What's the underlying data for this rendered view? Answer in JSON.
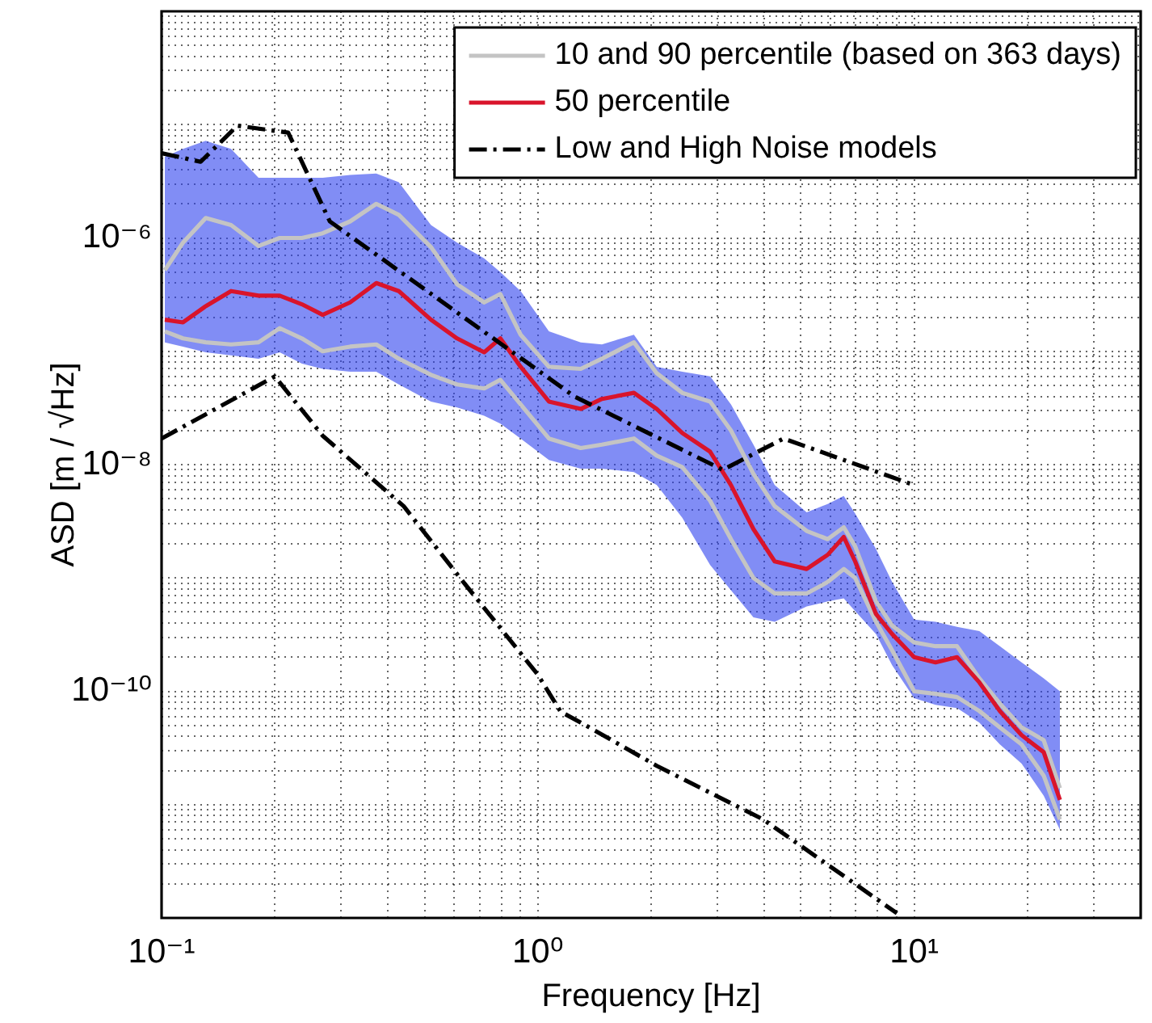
{
  "chart_data": {
    "type": "line",
    "xlabel": "Frequency [Hz]",
    "ylabel": "ASD [m / √Hz]",
    "log": "xy",
    "grid": true,
    "legend": "top right",
    "marker": "none",
    "xlim": [
      0.1,
      40
    ],
    "xticks": [
      {
        "value": 0.1,
        "label": "10⁻¹"
      },
      {
        "value": 0.2,
        "label": null
      },
      {
        "value": 0.3,
        "label": null
      },
      {
        "value": 0.4,
        "label": null
      },
      {
        "value": 0.5,
        "label": null
      },
      {
        "value": 0.6,
        "label": null
      },
      {
        "value": 0.7,
        "label": null
      },
      {
        "value": 0.8,
        "label": null
      },
      {
        "value": 0.9,
        "label": null
      },
      {
        "value": 1,
        "label": "10⁰"
      },
      {
        "value": 2,
        "label": null
      },
      {
        "value": 3,
        "label": null
      },
      {
        "value": 4,
        "label": null
      },
      {
        "value": 5,
        "label": null
      },
      {
        "value": 6,
        "label": null
      },
      {
        "value": 7,
        "label": null
      },
      {
        "value": 8,
        "label": null
      },
      {
        "value": 9,
        "label": null
      },
      {
        "value": 10,
        "label": "10¹"
      },
      {
        "value": 20,
        "label": null
      },
      {
        "value": 30,
        "label": null
      }
    ],
    "ylim": [
      1e-12,
      0.0001
    ],
    "yticks": [
      {
        "value": 1e-12,
        "label": null
      },
      {
        "value": 2e-12,
        "label": null
      },
      {
        "value": 3e-12,
        "label": null
      },
      {
        "value": 4e-12,
        "label": null
      },
      {
        "value": 5e-12,
        "label": null
      },
      {
        "value": 6e-12,
        "label": null
      },
      {
        "value": 7e-12,
        "label": null
      },
      {
        "value": 8e-12,
        "label": null
      },
      {
        "value": 9e-12,
        "label": null
      },
      {
        "value": 1e-11,
        "label": null
      },
      {
        "value": 2e-11,
        "label": null
      },
      {
        "value": 3e-11,
        "label": null
      },
      {
        "value": 4e-11,
        "label": null
      },
      {
        "value": 5e-11,
        "label": null
      },
      {
        "value": 6e-11,
        "label": null
      },
      {
        "value": 7e-11,
        "label": null
      },
      {
        "value": 8e-11,
        "label": null
      },
      {
        "value": 9e-11,
        "label": null
      },
      {
        "value": 1e-10,
        "label": "10⁻¹⁰"
      },
      {
        "value": 2e-10,
        "label": null
      },
      {
        "value": 3e-10,
        "label": null
      },
      {
        "value": 4e-10,
        "label": null
      },
      {
        "value": 5e-10,
        "label": null
      },
      {
        "value": 6e-10,
        "label": null
      },
      {
        "value": 7e-10,
        "label": null
      },
      {
        "value": 8e-10,
        "label": null
      },
      {
        "value": 9e-10,
        "label": null
      },
      {
        "value": 1e-09,
        "label": null
      },
      {
        "value": 2e-09,
        "label": null
      },
      {
        "value": 3e-09,
        "label": null
      },
      {
        "value": 4e-09,
        "label": null
      },
      {
        "value": 5e-09,
        "label": null
      },
      {
        "value": 6e-09,
        "label": null
      },
      {
        "value": 7e-09,
        "label": null
      },
      {
        "value": 8e-09,
        "label": null
      },
      {
        "value": 9e-09,
        "label": null
      },
      {
        "value": 1e-08,
        "label": "10⁻⁸"
      },
      {
        "value": 2e-08,
        "label": null
      },
      {
        "value": 3e-08,
        "label": null
      },
      {
        "value": 4e-08,
        "label": null
      },
      {
        "value": 5e-08,
        "label": null
      },
      {
        "value": 6e-08,
        "label": null
      },
      {
        "value": 7e-08,
        "label": null
      },
      {
        "value": 8e-08,
        "label": null
      },
      {
        "value": 9e-08,
        "label": null
      },
      {
        "value": 1e-07,
        "label": null
      },
      {
        "value": 2e-07,
        "label": null
      },
      {
        "value": 3e-07,
        "label": null
      },
      {
        "value": 4e-07,
        "label": null
      },
      {
        "value": 5e-07,
        "label": null
      },
      {
        "value": 6e-07,
        "label": null
      },
      {
        "value": 7e-07,
        "label": null
      },
      {
        "value": 8e-07,
        "label": null
      },
      {
        "value": 9e-07,
        "label": null
      },
      {
        "value": 1e-06,
        "label": "10⁻⁶"
      },
      {
        "value": 2e-06,
        "label": null
      },
      {
        "value": 3e-06,
        "label": null
      },
      {
        "value": 4e-06,
        "label": null
      },
      {
        "value": 5e-06,
        "label": null
      },
      {
        "value": 6e-06,
        "label": null
      },
      {
        "value": 7e-06,
        "label": null
      },
      {
        "value": 8e-06,
        "label": null
      },
      {
        "value": 9e-06,
        "label": null
      },
      {
        "value": 1e-05,
        "label": null
      },
      {
        "value": 2e-05,
        "label": null
      },
      {
        "value": 3e-05,
        "label": null
      },
      {
        "value": 4e-05,
        "label": null
      },
      {
        "value": 5e-05,
        "label": null
      },
      {
        "value": 6e-05,
        "label": null
      },
      {
        "value": 7e-05,
        "label": null
      },
      {
        "value": 8e-05,
        "label": null
      },
      {
        "value": 9e-05,
        "label": null
      },
      {
        "value": 0.0001,
        "label": null
      }
    ],
    "x": [
      0.102,
      0.114,
      0.131,
      0.153,
      0.181,
      0.206,
      0.236,
      0.268,
      0.317,
      0.372,
      0.427,
      0.52,
      0.61,
      0.72,
      0.795,
      0.9,
      1.07,
      1.3,
      1.48,
      1.8,
      2.07,
      2.42,
      2.87,
      3.26,
      3.74,
      4.26,
      5.18,
      5.89,
      6.5,
      6.97,
      7.92,
      8.74,
      10.0,
      11.4,
      13.0,
      14.9,
      16.9,
      19.3,
      22.1,
      24.4
    ],
    "series": [
      {
        "name": "10 and 90 percentile (based on 363 days)",
        "color": "#c4c4c4",
        "values": [
          5.2e-07,
          9.1e-07,
          1.5e-06,
          1.3e-06,
          8.5e-07,
          1e-06,
          1e-06,
          1.1e-06,
          1.4e-06,
          2e-06,
          1.6e-06,
          8.3e-07,
          3.9e-07,
          2.7e-07,
          3.2e-07,
          1.4e-07,
          7.3e-08,
          7e-08,
          8.6e-08,
          1.2e-07,
          6.4e-08,
          4.3e-08,
          3.6e-08,
          2e-08,
          8.3e-09,
          4.3e-09,
          2.6e-09,
          2.2e-09,
          2.8e-09,
          1.9e-09,
          6.2e-10,
          3.8e-10,
          2.7e-10,
          2.5e-10,
          2.5e-10,
          1.3e-10,
          7.8e-11,
          4.8e-11,
          3.7e-11,
          1.4e-11
        ]
      },
      {
        "color": "#c4c4c4",
        "values": [
          1.5e-07,
          1.3e-07,
          1.2e-07,
          1.15e-07,
          1.2e-07,
          1.6e-07,
          1.3e-07,
          1e-07,
          1.1e-07,
          1.15e-07,
          8.6e-08,
          6.2e-08,
          5.1e-08,
          4.7e-08,
          5.6e-08,
          3.4e-08,
          1.7e-08,
          1.4e-08,
          1.5e-08,
          1.7e-08,
          1.2e-08,
          9.5e-09,
          4.8e-09,
          2.2e-09,
          1e-09,
          7.3e-10,
          7.3e-10,
          9.2e-10,
          1.2e-09,
          1e-09,
          4.1e-10,
          2.3e-10,
          1e-10,
          9.5e-11,
          8.9e-11,
          6.7e-11,
          4.8e-11,
          3.4e-11,
          1.8e-11,
          7.4e-12
        ]
      },
      {
        "name": "50 percentile",
        "color": "#d9142b",
        "values": [
          1.9e-07,
          1.8e-07,
          2.5e-07,
          3.4e-07,
          3.1e-07,
          3.1e-07,
          2.6e-07,
          2.1e-07,
          2.7e-07,
          4e-07,
          3.4e-07,
          1.9e-07,
          1.3e-07,
          9.8e-08,
          1.3e-07,
          7.3e-08,
          3.6e-08,
          3.1e-08,
          3.8e-08,
          4.3e-08,
          3.1e-08,
          1.9e-08,
          1.3e-08,
          6.6e-09,
          2.7e-09,
          1.4e-09,
          1.2e-09,
          1.6e-09,
          2.3e-09,
          1.4e-09,
          4.8e-10,
          3.2e-10,
          2e-10,
          1.8e-10,
          2e-10,
          1.2e-10,
          6.7e-11,
          4.1e-11,
          2.9e-11,
          1.1e-11
        ],
        "lower": [
          1.2e-07,
          1.1e-07,
          9.8e-08,
          9.2e-08,
          8.6e-08,
          9.8e-08,
          7.8e-08,
          7e-08,
          6.6e-08,
          6.6e-08,
          5.1e-08,
          3.6e-08,
          3.2e-08,
          2.7e-08,
          2.3e-08,
          1.7e-08,
          1.1e-08,
          9.2e-09,
          9.2e-09,
          8.6e-09,
          6.6e-09,
          3.4e-09,
          1.3e-09,
          7.8e-10,
          4.5e-10,
          4.1e-10,
          5.6e-10,
          6.2e-10,
          6.6e-10,
          5.1e-10,
          3.2e-10,
          1.7e-10,
          8.7e-11,
          7.6e-11,
          7.1e-11,
          5.3e-11,
          3.4e-11,
          2.3e-11,
          1.2e-11,
          6e-12
        ],
        "upper": [
          5.2e-06,
          6.1e-06,
          7.2e-06,
          6.1e-06,
          3.4e-06,
          3.4e-06,
          3.4e-06,
          3.4e-06,
          3.6e-06,
          3.7e-06,
          3.1e-06,
          1.3e-06,
          9.1e-07,
          6.6e-07,
          5e-07,
          3.4e-07,
          1.5e-07,
          1.2e-07,
          1.15e-07,
          1.4e-07,
          7.3e-08,
          6.6e-08,
          6e-08,
          3.4e-08,
          1.5e-08,
          6.6e-09,
          3.8e-09,
          4.5e-09,
          5.3e-09,
          3.7e-09,
          1.8e-09,
          9.2e-10,
          4.3e-10,
          4.1e-10,
          3.7e-10,
          3.4e-10,
          2.5e-10,
          1.8e-10,
          1.3e-10,
          1e-10
        ]
      },
      {
        "name": "Low and High Noise models",
        "color": "#000000",
        "line_style": "dashdot",
        "x": [
          0.1,
          0.127,
          0.159,
          0.217,
          0.28,
          1.25,
          3.1,
          4.5,
          10
        ],
        "values": [
          5.6e-06,
          4.7e-06,
          9.8e-06,
          8.5e-06,
          1.4e-06,
          4e-08,
          9e-09,
          1.7e-08,
          6.6e-09
        ]
      },
      {
        "color": "#000000",
        "line_style": "dashdot",
        "x": [
          0.1,
          0.2,
          0.268,
          0.44,
          0.634,
          1.0,
          1.15,
          1.3,
          2.07,
          3.97,
          9.0
        ],
        "values": [
          1.7e-08,
          6e-08,
          1.8e-08,
          4.3e-09,
          9.2e-10,
          1.4e-10,
          6.6e-11,
          5.3e-11,
          2.2e-11,
          7.4e-12,
          1.1e-12
        ]
      }
    ]
  }
}
